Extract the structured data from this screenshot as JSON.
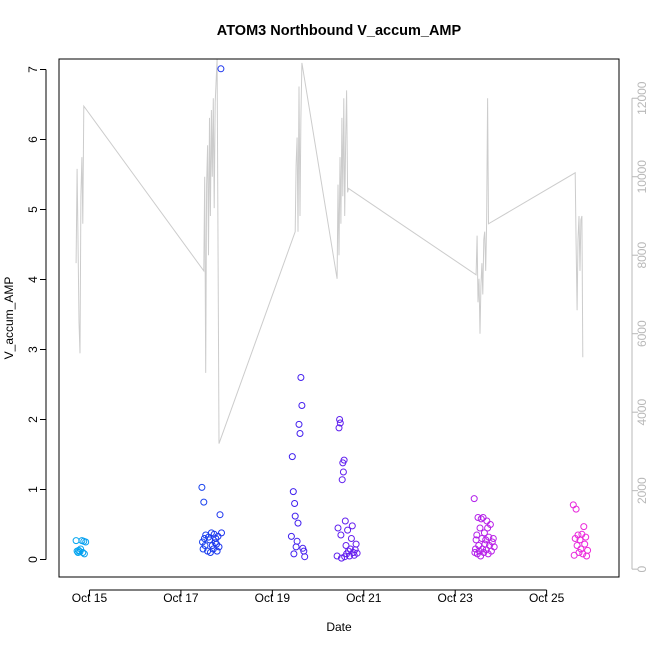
{
  "chart_data": {
    "type": "scatter",
    "title": "ATOM3 Northbound V_accum_AMP",
    "xlabel": "Date",
    "ylabel": "V_accum_AMP",
    "xlim": [
      "2023-10-14 08:00",
      "2023-10-26 14:00"
    ],
    "ylim": [
      -0.25,
      7.15
    ],
    "x_ticks": [
      "2023-10-15 00:00",
      "2023-10-17 00:00",
      "2023-10-19 00:00",
      "2023-10-21 00:00",
      "2023-10-23 00:00",
      "2023-10-25 00:00"
    ],
    "x_tick_labels": [
      "Oct 15",
      "Oct 17",
      "Oct 19",
      "Oct 21",
      "Oct 23",
      "Oct 25"
    ],
    "y_ticks": [
      0,
      1,
      2,
      3,
      4,
      5,
      6,
      7
    ],
    "y2lim": [
      -200,
      13000
    ],
    "y2_ticks": [
      0,
      2000,
      4000,
      6000,
      8000,
      10000,
      12000
    ],
    "grid": false,
    "legend": "none",
    "colors": {
      "line": "#cccccc",
      "point_start": "#00b4f0",
      "point_mid": "#2020ee",
      "point_late": "#9a1cf0",
      "point_end": "#ff2bd6",
      "frame": "#000000"
    },
    "series": [
      {
        "role": "points",
        "axis": "left",
        "points": [
          [
            "2023-10-14 17:00",
            0.27
          ],
          [
            "2023-10-14 17:30",
            0.12
          ],
          [
            "2023-10-14 18:00",
            0.1
          ],
          [
            "2023-10-14 18:20",
            0.13
          ],
          [
            "2023-10-14 19:00",
            0.11
          ],
          [
            "2023-10-14 19:20",
            0.15
          ],
          [
            "2023-10-14 20:00",
            0.27
          ],
          [
            "2023-10-14 20:30",
            0.1
          ],
          [
            "2023-10-14 21:00",
            0.26
          ],
          [
            "2023-10-14 21:20",
            0.08
          ],
          [
            "2023-10-14 22:00",
            0.25
          ],
          [
            "2023-10-17 11:00",
            1.03
          ],
          [
            "2023-10-17 11:20",
            0.25
          ],
          [
            "2023-10-17 11:40",
            0.15
          ],
          [
            "2023-10-17 12:00",
            0.82
          ],
          [
            "2023-10-17 12:20",
            0.3
          ],
          [
            "2023-10-17 12:40",
            0.2
          ],
          [
            "2023-10-17 13:00",
            0.35
          ],
          [
            "2023-10-17 14:00",
            0.12
          ],
          [
            "2023-10-17 14:30",
            0.32
          ],
          [
            "2023-10-17 15:00",
            0.28
          ],
          [
            "2023-10-17 15:30",
            0.1
          ],
          [
            "2023-10-17 16:00",
            0.38
          ],
          [
            "2023-10-17 16:30",
            0.2
          ],
          [
            "2023-10-17 17:00",
            0.15
          ],
          [
            "2023-10-17 17:30",
            0.36
          ],
          [
            "2023-10-17 18:00",
            0.24
          ],
          [
            "2023-10-17 18:20",
            0.3
          ],
          [
            "2023-10-17 18:40",
            0.22
          ],
          [
            "2023-10-17 19:00",
            0.12
          ],
          [
            "2023-10-17 19:30",
            0.33
          ],
          [
            "2023-10-17 20:00",
            0.18
          ],
          [
            "2023-10-17 20:30",
            0.64
          ],
          [
            "2023-10-17 21:00",
            7.01
          ],
          [
            "2023-10-17 21:20",
            0.38
          ],
          [
            "2023-10-19 10:00",
            0.33
          ],
          [
            "2023-10-19 10:30",
            1.47
          ],
          [
            "2023-10-19 11:00",
            0.97
          ],
          [
            "2023-10-19 11:20",
            0.08
          ],
          [
            "2023-10-19 11:40",
            0.8
          ],
          [
            "2023-10-19 12:00",
            0.62
          ],
          [
            "2023-10-19 12:30",
            0.18
          ],
          [
            "2023-10-19 13:00",
            0.26
          ],
          [
            "2023-10-19 13:30",
            0.52
          ],
          [
            "2023-10-19 14:00",
            1.93
          ],
          [
            "2023-10-19 14:30",
            1.8
          ],
          [
            "2023-10-19 15:00",
            2.6
          ],
          [
            "2023-10-19 15:30",
            2.2
          ],
          [
            "2023-10-19 16:00",
            0.16
          ],
          [
            "2023-10-19 16:30",
            0.12
          ],
          [
            "2023-10-19 17:00",
            0.04
          ],
          [
            "2023-10-20 10:00",
            0.05
          ],
          [
            "2023-10-20 10:30",
            0.45
          ],
          [
            "2023-10-20 11:00",
            1.88
          ],
          [
            "2023-10-20 11:20",
            2.0
          ],
          [
            "2023-10-20 11:40",
            1.95
          ],
          [
            "2023-10-20 12:00",
            0.35
          ],
          [
            "2023-10-20 12:20",
            0.02
          ],
          [
            "2023-10-20 12:40",
            1.14
          ],
          [
            "2023-10-20 13:00",
            1.38
          ],
          [
            "2023-10-20 13:20",
            1.25
          ],
          [
            "2023-10-20 13:40",
            1.42
          ],
          [
            "2023-10-20 14:00",
            0.04
          ],
          [
            "2023-10-20 14:20",
            0.55
          ],
          [
            "2023-10-20 14:40",
            0.2
          ],
          [
            "2023-10-20 15:00",
            0.08
          ],
          [
            "2023-10-20 15:30",
            0.42
          ],
          [
            "2023-10-20 16:00",
            0.12
          ],
          [
            "2023-10-20 16:30",
            0.05
          ],
          [
            "2023-10-20 17:00",
            0.15
          ],
          [
            "2023-10-20 17:30",
            0.3
          ],
          [
            "2023-10-20 18:00",
            0.48
          ],
          [
            "2023-10-20 18:30",
            0.1
          ],
          [
            "2023-10-20 19:00",
            0.06
          ],
          [
            "2023-10-20 19:30",
            0.14
          ],
          [
            "2023-10-20 20:00",
            0.22
          ],
          [
            "2023-10-20 20:30",
            0.09
          ],
          [
            "2023-10-23 10:00",
            0.87
          ],
          [
            "2023-10-23 10:20",
            0.1
          ],
          [
            "2023-10-23 10:40",
            0.15
          ],
          [
            "2023-10-23 11:00",
            0.28
          ],
          [
            "2023-10-23 11:20",
            0.35
          ],
          [
            "2023-10-23 11:40",
            0.08
          ],
          [
            "2023-10-23 12:00",
            0.6
          ],
          [
            "2023-10-23 12:20",
            0.2
          ],
          [
            "2023-10-23 12:40",
            0.12
          ],
          [
            "2023-10-23 13:00",
            0.45
          ],
          [
            "2023-10-23 13:20",
            0.05
          ],
          [
            "2023-10-23 13:40",
            0.58
          ],
          [
            "2023-10-23 14:00",
            0.3
          ],
          [
            "2023-10-23 14:20",
            0.15
          ],
          [
            "2023-10-23 14:40",
            0.6
          ],
          [
            "2023-10-23 15:00",
            0.1
          ],
          [
            "2023-10-23 15:20",
            0.38
          ],
          [
            "2023-10-23 15:40",
            0.22
          ],
          [
            "2023-10-23 16:00",
            0.28
          ],
          [
            "2023-10-23 16:20",
            0.14
          ],
          [
            "2023-10-23 16:40",
            0.55
          ],
          [
            "2023-10-23 17:00",
            0.45
          ],
          [
            "2023-10-23 17:20",
            0.08
          ],
          [
            "2023-10-23 17:40",
            0.32
          ],
          [
            "2023-10-23 18:00",
            0.2
          ],
          [
            "2023-10-23 18:30",
            0.5
          ],
          [
            "2023-10-23 19:00",
            0.12
          ],
          [
            "2023-10-23 19:30",
            0.25
          ],
          [
            "2023-10-23 20:00",
            0.3
          ],
          [
            "2023-10-23 20:30",
            0.18
          ],
          [
            "2023-10-25 14:00",
            0.78
          ],
          [
            "2023-10-25 14:30",
            0.06
          ],
          [
            "2023-10-25 15:00",
            0.3
          ],
          [
            "2023-10-25 15:30",
            0.72
          ],
          [
            "2023-10-25 16:00",
            0.2
          ],
          [
            "2023-10-25 16:30",
            0.35
          ],
          [
            "2023-10-25 17:00",
            0.1
          ],
          [
            "2023-10-25 17:30",
            0.28
          ],
          [
            "2023-10-25 18:00",
            0.15
          ],
          [
            "2023-10-25 18:30",
            0.36
          ],
          [
            "2023-10-25 19:00",
            0.08
          ],
          [
            "2023-10-25 19:30",
            0.47
          ],
          [
            "2023-10-25 20:00",
            0.22
          ],
          [
            "2023-10-25 20:30",
            0.32
          ],
          [
            "2023-10-25 21:00",
            0.05
          ],
          [
            "2023-10-25 21:30",
            0.13
          ]
        ]
      },
      {
        "role": "line",
        "axis": "right",
        "points": [
          [
            "2023-10-14 17:00",
            7800
          ],
          [
            "2023-10-14 17:30",
            10200
          ],
          [
            "2023-10-14 18:00",
            8400
          ],
          [
            "2023-10-14 18:30",
            6300
          ],
          [
            "2023-10-14 19:00",
            5500
          ],
          [
            "2023-10-14 19:30",
            9500
          ],
          [
            "2023-10-14 20:00",
            10500
          ],
          [
            "2023-10-14 20:30",
            8800
          ],
          [
            "2023-10-14 21:00",
            11800
          ],
          [
            "2023-10-17 12:00",
            7600
          ],
          [
            "2023-10-17 12:30",
            10000
          ],
          [
            "2023-10-17 13:00",
            5000
          ],
          [
            "2023-10-17 13:30",
            9800
          ],
          [
            "2023-10-17 14:00",
            10800
          ],
          [
            "2023-10-17 14:30",
            8000
          ],
          [
            "2023-10-17 15:00",
            11500
          ],
          [
            "2023-10-17 15:30",
            9000
          ],
          [
            "2023-10-17 16:00",
            11700
          ],
          [
            "2023-10-17 16:30",
            10000
          ],
          [
            "2023-10-17 17:00",
            12000
          ],
          [
            "2023-10-17 17:30",
            9200
          ],
          [
            "2023-10-17 18:00",
            11900
          ],
          [
            "2023-10-17 19:00",
            13000
          ],
          [
            "2023-10-17 20:00",
            3200
          ],
          [
            "2023-10-19 12:00",
            8600
          ],
          [
            "2023-10-19 12:30",
            10300
          ],
          [
            "2023-10-19 13:00",
            11000
          ],
          [
            "2023-10-19 13:30",
            8600
          ],
          [
            "2023-10-19 14:00",
            12300
          ],
          [
            "2023-10-19 14:30",
            9000
          ],
          [
            "2023-10-19 15:00",
            11500
          ],
          [
            "2023-10-19 15:30",
            12900
          ],
          [
            "2023-10-20 10:00",
            7400
          ],
          [
            "2023-10-20 10:30",
            9800
          ],
          [
            "2023-10-20 11:00",
            8000
          ],
          [
            "2023-10-20 11:30",
            10500
          ],
          [
            "2023-10-20 12:00",
            8800
          ],
          [
            "2023-10-20 12:30",
            11500
          ],
          [
            "2023-10-20 13:00",
            9500
          ],
          [
            "2023-10-20 13:30",
            12000
          ],
          [
            "2023-10-20 14:00",
            9000
          ],
          [
            "2023-10-20 14:30",
            11000
          ],
          [
            "2023-10-20 15:00",
            12200
          ],
          [
            "2023-10-20 15:30",
            9600
          ],
          [
            "2023-10-20 16:00",
            9700
          ],
          [
            "2023-10-23 11:00",
            7500
          ],
          [
            "2023-10-23 11:30",
            8500
          ],
          [
            "2023-10-23 12:00",
            6800
          ],
          [
            "2023-10-23 12:30",
            7400
          ],
          [
            "2023-10-23 13:00",
            6000
          ],
          [
            "2023-10-23 13:30",
            7200
          ],
          [
            "2023-10-23 14:00",
            7800
          ],
          [
            "2023-10-23 14:30",
            7000
          ],
          [
            "2023-10-23 15:00",
            8400
          ],
          [
            "2023-10-23 15:30",
            8600
          ],
          [
            "2023-10-23 16:00",
            7600
          ],
          [
            "2023-10-23 16:30",
            8800
          ],
          [
            "2023-10-23 17:00",
            12000
          ],
          [
            "2023-10-23 17:30",
            8800
          ],
          [
            "2023-10-25 15:00",
            10100
          ],
          [
            "2023-10-25 15:30",
            8300
          ],
          [
            "2023-10-25 16:00",
            6600
          ],
          [
            "2023-10-25 16:30",
            8400
          ],
          [
            "2023-10-25 17:00",
            9000
          ],
          [
            "2023-10-25 17:30",
            7600
          ],
          [
            "2023-10-25 18:00",
            8900
          ],
          [
            "2023-10-25 18:30",
            9000
          ],
          [
            "2023-10-25 19:00",
            5400
          ]
        ]
      }
    ]
  }
}
